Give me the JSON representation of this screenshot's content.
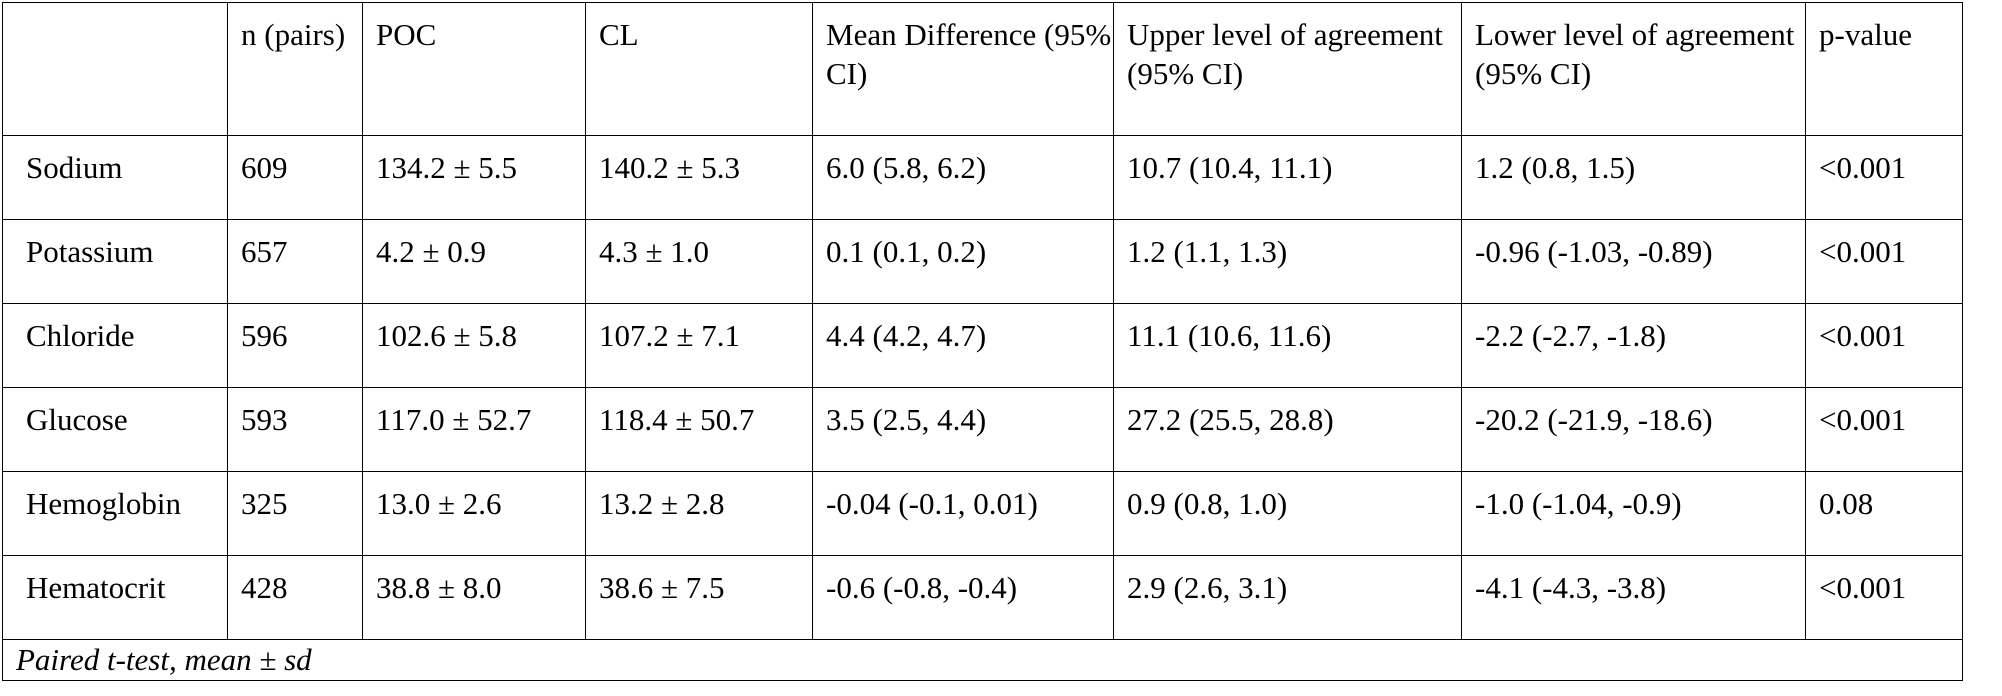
{
  "table": {
    "headers": [
      "",
      "n (pairs)",
      "POC",
      "CL",
      "Mean Difference (95% CI)",
      "Upper level of agreement (95% CI)",
      "Lower level of agreement (95% CI)",
      "p-value"
    ],
    "rows": [
      [
        "Sodium",
        "609",
        "134.2 ± 5.5",
        "140.2 ± 5.3",
        "6.0 (5.8, 6.2)",
        "10.7 (10.4, 11.1)",
        "1.2 (0.8, 1.5)",
        "<0.001"
      ],
      [
        "Potassium",
        "657",
        "4.2 ± 0.9",
        "4.3 ± 1.0",
        "0.1 (0.1, 0.2)",
        "1.2 (1.1, 1.3)",
        "-0.96 (-1.03, -0.89)",
        "<0.001"
      ],
      [
        "Chloride",
        "596",
        "102.6 ± 5.8",
        "107.2 ± 7.1",
        "4.4 (4.2, 4.7)",
        "11.1 (10.6, 11.6)",
        "-2.2 (-2.7, -1.8)",
        "<0.001"
      ],
      [
        "Glucose",
        "593",
        "117.0 ± 52.7",
        "118.4 ± 50.7",
        "3.5 (2.5, 4.4)",
        "27.2 (25.5, 28.8)",
        "-20.2 (-21.9, -18.6)",
        "<0.001"
      ],
      [
        "Hemoglobin",
        "325",
        "13.0 ± 2.6",
        "13.2 ± 2.8",
        "-0.04 (-0.1, 0.01)",
        "0.9 (0.8, 1.0)",
        "-1.0 (-1.04, -0.9)",
        "0.08"
      ],
      [
        "Hematocrit",
        "428",
        "38.8 ± 8.0",
        "38.6 ± 7.5",
        "-0.6 (-0.8, -0.4)",
        "2.9 (2.6, 3.1)",
        "-4.1 (-4.3, -3.8)",
        "<0.001"
      ]
    ],
    "footnote": "Paired t-test, mean ± sd"
  }
}
